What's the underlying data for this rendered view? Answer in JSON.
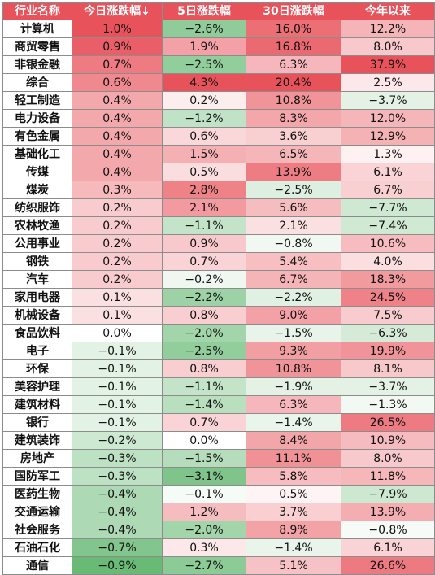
{
  "headers": [
    "行业名称",
    "今日涨跌幅↓",
    "5日涨跌幅",
    "30日涨跌幅",
    "今年以来"
  ],
  "colors": {
    "header_bg": "#e8525a",
    "positive": "#e8525a",
    "negative": "#5cb46a",
    "border": "#8c8c8c"
  },
  "rows": [
    {
      "name": "计算机",
      "values": [
        1.0,
        -2.6,
        16.0,
        12.2
      ]
    },
    {
      "name": "商贸零售",
      "values": [
        0.9,
        1.9,
        16.8,
        8.0
      ]
    },
    {
      "name": "非银金融",
      "values": [
        0.7,
        -2.5,
        6.3,
        37.9
      ]
    },
    {
      "name": "综合",
      "values": [
        0.6,
        4.3,
        20.4,
        2.5
      ]
    },
    {
      "name": "轻工制造",
      "values": [
        0.4,
        0.2,
        10.8,
        -3.7
      ]
    },
    {
      "name": "电力设备",
      "values": [
        0.4,
        -1.2,
        8.3,
        12.0
      ]
    },
    {
      "name": "有色金属",
      "values": [
        0.4,
        0.6,
        3.6,
        12.9
      ]
    },
    {
      "name": "基础化工",
      "values": [
        0.4,
        1.5,
        6.5,
        1.3
      ]
    },
    {
      "name": "传媒",
      "values": [
        0.4,
        0.5,
        13.9,
        6.1
      ]
    },
    {
      "name": "煤炭",
      "values": [
        0.3,
        2.8,
        -2.5,
        6.7
      ]
    },
    {
      "name": "纺织服饰",
      "values": [
        0.2,
        2.1,
        5.6,
        -7.7
      ]
    },
    {
      "name": "农林牧渔",
      "values": [
        0.2,
        -1.1,
        2.1,
        -7.4
      ]
    },
    {
      "name": "公用事业",
      "values": [
        0.2,
        0.9,
        -0.8,
        10.6
      ]
    },
    {
      "name": "钢铁",
      "values": [
        0.2,
        0.7,
        5.4,
        4.0
      ]
    },
    {
      "name": "汽车",
      "values": [
        0.2,
        -0.2,
        6.7,
        18.3
      ]
    },
    {
      "name": "家用电器",
      "values": [
        0.1,
        -2.2,
        -2.2,
        24.5
      ]
    },
    {
      "name": "机械设备",
      "values": [
        0.1,
        0.8,
        9.0,
        7.5
      ]
    },
    {
      "name": "食品饮料",
      "values": [
        0.0,
        -2.0,
        -1.5,
        -6.3
      ]
    },
    {
      "name": "电子",
      "values": [
        -0.1,
        -2.5,
        9.3,
        19.9
      ]
    },
    {
      "name": "环保",
      "values": [
        -0.1,
        0.8,
        10.8,
        8.1
      ]
    },
    {
      "name": "美容护理",
      "values": [
        -0.1,
        -1.1,
        -1.9,
        -3.7
      ]
    },
    {
      "name": "建筑材料",
      "values": [
        -0.1,
        -1.4,
        6.3,
        -1.3
      ]
    },
    {
      "name": "银行",
      "values": [
        -0.1,
        0.7,
        -1.4,
        26.5
      ]
    },
    {
      "name": "建筑装饰",
      "values": [
        -0.2,
        0.0,
        8.4,
        10.9
      ]
    },
    {
      "name": "房地产",
      "values": [
        -0.3,
        -1.5,
        11.1,
        8.0
      ]
    },
    {
      "name": "国防军工",
      "values": [
        -0.3,
        -3.1,
        5.8,
        11.8
      ]
    },
    {
      "name": "医药生物",
      "values": [
        -0.4,
        -0.1,
        0.5,
        -7.9
      ]
    },
    {
      "name": "交通运输",
      "values": [
        -0.4,
        1.2,
        3.7,
        13.9
      ]
    },
    {
      "name": "社会服务",
      "values": [
        -0.4,
        -2.0,
        8.9,
        -0.8
      ]
    },
    {
      "name": "石油石化",
      "values": [
        -0.7,
        0.3,
        -1.4,
        6.1
      ]
    },
    {
      "name": "通信",
      "values": [
        -0.9,
        -2.7,
        5.1,
        26.6
      ]
    }
  ]
}
